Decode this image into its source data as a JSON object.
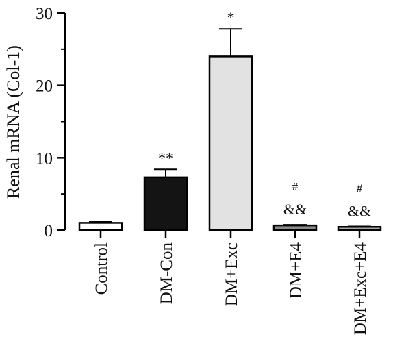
{
  "chart_data": {
    "type": "bar",
    "title": "",
    "xlabel": "",
    "ylabel": "Renal mRNA (Col-1)",
    "ylim": [
      0,
      30
    ],
    "yticks": [
      "0",
      "10",
      "20",
      "30"
    ],
    "grid": false,
    "categories": [
      "Control",
      "DM-Con",
      "DM+Exc",
      "DM+E4",
      "DM+Exc+E4"
    ],
    "values": [
      1.0,
      7.3,
      24.0,
      0.65,
      0.45
    ],
    "errors": [
      0.15,
      1.1,
      3.8,
      0.1,
      0.07
    ],
    "bar_colors": [
      "#ffffff",
      "#141414",
      "#e2e2e2",
      "#8a8a8a",
      "#a6a6a6"
    ],
    "annotations": [
      {
        "category": "DM-Con",
        "lines": [
          "**"
        ]
      },
      {
        "category": "DM+Exc",
        "lines": [
          "*"
        ]
      },
      {
        "category": "DM+E4",
        "lines": [
          "#",
          "&&"
        ]
      },
      {
        "category": "DM+Exc+E4",
        "lines": [
          "#",
          "&&"
        ]
      }
    ]
  }
}
